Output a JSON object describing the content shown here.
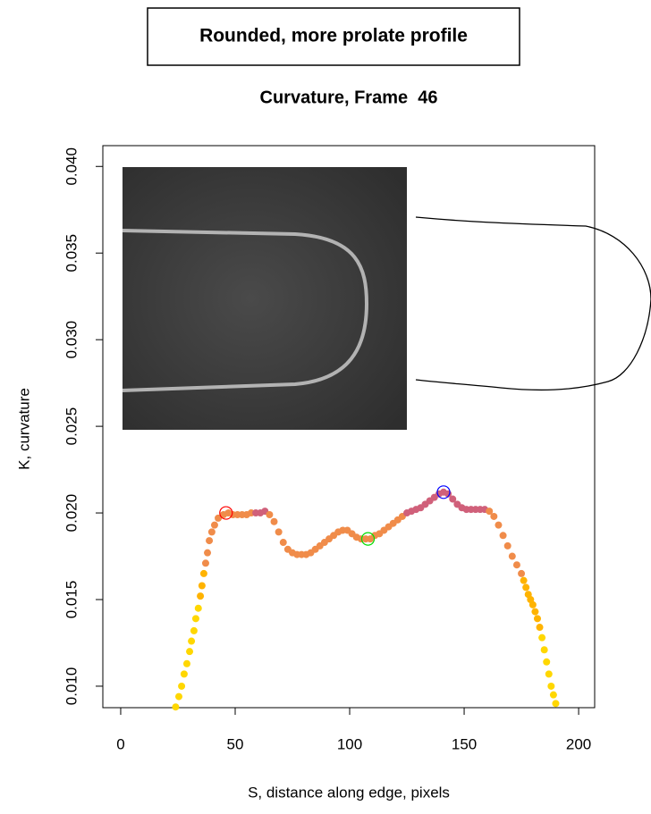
{
  "header": {
    "title": "Rounded, more prolate profile"
  },
  "chart_data": {
    "type": "scatter",
    "title": "Curvature, Frame  46",
    "x_label": "S, distance along edge, pixels",
    "y_label": "K, curvature",
    "xlim": [
      -7.8,
      207
    ],
    "ylim": [
      0.00876,
      0.0412
    ],
    "xticks": [
      0,
      50,
      100,
      150,
      200
    ],
    "yticks": [
      {
        "value": 0.01,
        "label": "0.010"
      },
      0.015,
      {
        "value": 0.02,
        "label": "0.020"
      },
      0.025,
      {
        "value": 0.03,
        "label": "0.030"
      },
      0.035,
      {
        "value": 0.04,
        "label": "0.040"
      }
    ],
    "series": [
      {
        "color": "#ffd700",
        "x": [
          24,
          25.4,
          26.6,
          27.7,
          28.9,
          30.1,
          30.9,
          32,
          32.8,
          33.9
        ],
        "values": [
          0.0088,
          0.0094,
          0.01,
          0.0107,
          0.0113,
          0.012,
          0.0126,
          0.0132,
          0.0139,
          0.0145
        ]
      },
      {
        "color": "#ffb300",
        "x": [
          34.8,
          35.5,
          36.3
        ],
        "values": [
          0.0152,
          0.0158,
          0.0165
        ]
      },
      {
        "color": "#f08c4a",
        "x": [
          37.1,
          37.9,
          38.7,
          39.8,
          41,
          42.6,
          44.9,
          47,
          49,
          51,
          53,
          55,
          57
        ],
        "values": [
          0.0171,
          0.0177,
          0.0184,
          0.0189,
          0.0193,
          0.0197,
          0.0199,
          0.02,
          0.0199,
          0.0199,
          0.0199,
          0.0199,
          0.02
        ]
      },
      {
        "color": "#d0607a",
        "x": [
          59,
          61,
          63
        ],
        "values": [
          0.02,
          0.02,
          0.0201
        ]
      },
      {
        "color": "#f08c4a",
        "x": [
          65,
          67,
          69,
          71,
          73,
          75,
          77,
          79,
          81,
          83,
          85,
          87,
          89,
          91,
          93,
          95,
          97,
          99,
          101,
          103,
          105,
          107,
          109,
          111,
          113,
          115,
          117,
          119,
          121,
          123
        ],
        "values": [
          0.0199,
          0.0195,
          0.0189,
          0.0183,
          0.0179,
          0.0177,
          0.0176,
          0.0176,
          0.0176,
          0.0177,
          0.0179,
          0.0181,
          0.0183,
          0.0185,
          0.0187,
          0.0189,
          0.019,
          0.019,
          0.0188,
          0.0186,
          0.0185,
          0.0185,
          0.0185,
          0.0187,
          0.0188,
          0.019,
          0.0192,
          0.0194,
          0.0196,
          0.0198
        ]
      },
      {
        "color": "#d0607a",
        "x": [
          125,
          127,
          129,
          131,
          133,
          135,
          137,
          139,
          141,
          143,
          145,
          147,
          149,
          151,
          153,
          155,
          157,
          159
        ],
        "values": [
          0.02,
          0.0201,
          0.0202,
          0.0203,
          0.0205,
          0.0207,
          0.0209,
          0.0211,
          0.0212,
          0.0211,
          0.0208,
          0.0205,
          0.0203,
          0.0202,
          0.0202,
          0.0202,
          0.0202,
          0.0202
        ]
      },
      {
        "color": "#f08c4a",
        "x": [
          161,
          163,
          165,
          167,
          169,
          171,
          173,
          175
        ],
        "values": [
          0.0201,
          0.0198,
          0.0193,
          0.0187,
          0.0181,
          0.0175,
          0.017,
          0.0165
        ]
      },
      {
        "color": "#ffb300",
        "x": [
          176,
          177,
          178,
          179,
          180,
          181,
          182,
          183
        ],
        "values": [
          0.0161,
          0.0157,
          0.0153,
          0.015,
          0.0147,
          0.0143,
          0.0139,
          0.0134
        ]
      },
      {
        "color": "#ffd700",
        "x": [
          184,
          185,
          186,
          187,
          188,
          189,
          190
        ],
        "values": [
          0.0128,
          0.0121,
          0.0114,
          0.0107,
          0.01,
          0.0095,
          0.009
        ]
      }
    ],
    "highlights": {
      "x": [
        46,
        108,
        141
      ],
      "values": [
        0.02,
        0.0185,
        0.0212
      ],
      "colors": [
        "#ff0000",
        "#00dd00",
        "#0000ff"
      ]
    }
  }
}
